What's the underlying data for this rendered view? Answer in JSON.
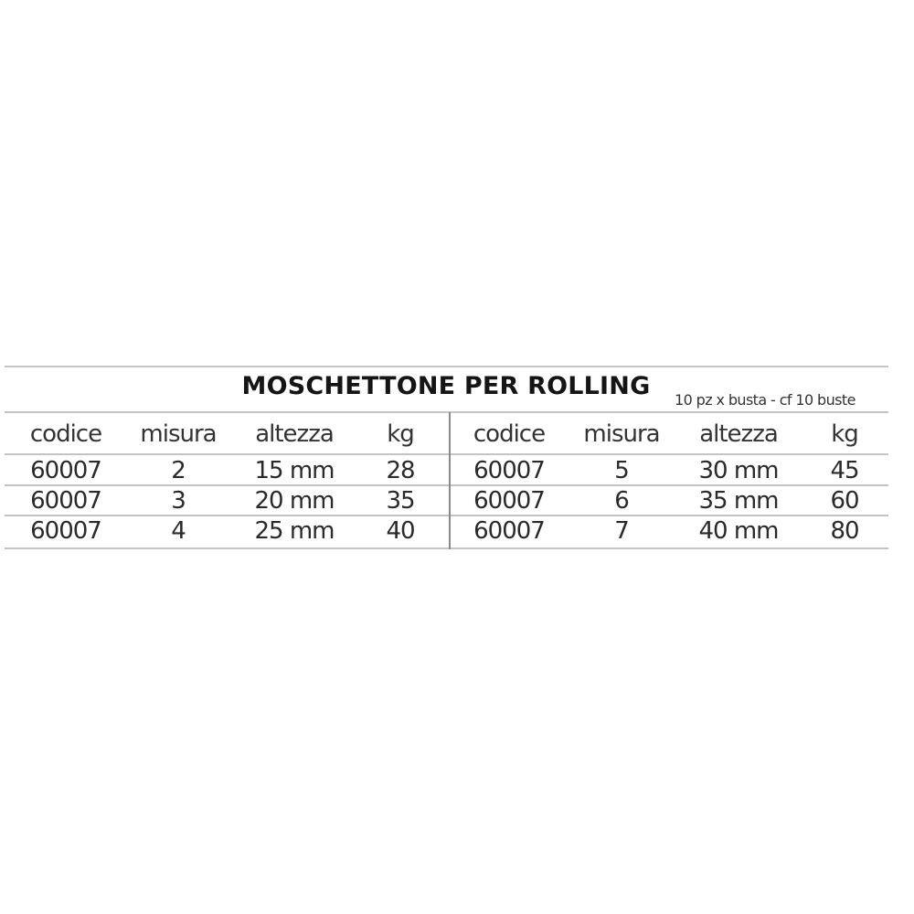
{
  "title": "MOSCHETTONE PER ROLLING",
  "subtitle": "10 pz x busta - cf 10 buste",
  "columns": [
    "codice",
    "misura",
    "altezza",
    "kg"
  ],
  "left_rows": [
    [
      "60007",
      "2",
      "15 mm",
      "28"
    ],
    [
      "60007",
      "3",
      "20 mm",
      "35"
    ],
    [
      "60007",
      "4",
      "25 mm",
      "40"
    ]
  ],
  "right_rows": [
    [
      "60007",
      "5",
      "30 mm",
      "45"
    ],
    [
      "60007",
      "6",
      "35 mm",
      "60"
    ],
    [
      "60007",
      "7",
      "40 mm",
      "80"
    ]
  ]
}
